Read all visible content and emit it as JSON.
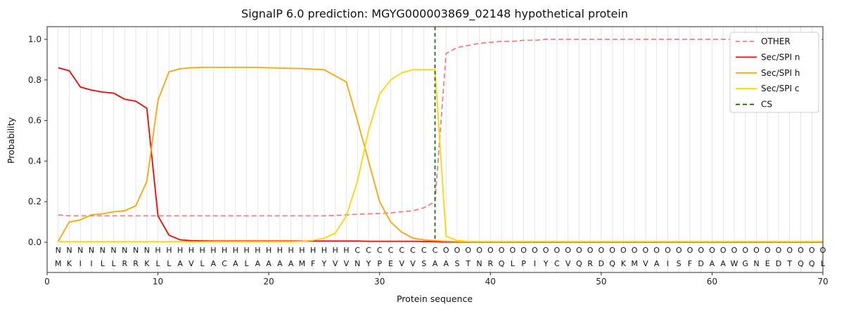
{
  "title": "SignalP 6.0 prediction: MGYG000003869_02148 hypothetical protein",
  "chart_data": {
    "type": "line",
    "xlabel": "Protein sequence",
    "ylabel": "Probability",
    "xlim": [
      0,
      70
    ],
    "yticks": [
      0.0,
      0.2,
      0.4,
      0.6,
      0.8,
      1.0
    ],
    "xticks": [
      0,
      10,
      20,
      30,
      40,
      50,
      60,
      70
    ],
    "grid": "vertical-per-residue",
    "legend_position": "upper-right",
    "cs_position": 35,
    "sequence": "MKIILLRRKLLAVLACALAAAAMFYVVNYPEVVSAASTNRQLPIYCVQRDQKMVAISFDAAWGNEDTQQL",
    "regions": "NNNNNNNNNHHHHHHHHHHHHHHHHHHCCCCCCCCOOOOOOOOOOOOOOOOOOOOOOOOOOOOOOOOOOO",
    "region_colors": {
      "N": "#ff0000",
      "H": "#ffa500",
      "C": "#ffd700",
      "O": "#a0a0a0"
    },
    "series": [
      {
        "name": "OTHER",
        "color": "#f08080",
        "dash": true,
        "values": [
          0.135,
          0.13,
          0.13,
          0.13,
          0.13,
          0.13,
          0.13,
          0.13,
          0.13,
          0.13,
          0.13,
          0.13,
          0.13,
          0.13,
          0.13,
          0.13,
          0.13,
          0.13,
          0.13,
          0.13,
          0.13,
          0.13,
          0.13,
          0.13,
          0.13,
          0.132,
          0.135,
          0.138,
          0.14,
          0.142,
          0.145,
          0.15,
          0.155,
          0.17,
          0.2,
          0.93,
          0.96,
          0.97,
          0.98,
          0.985,
          0.99,
          0.99,
          0.995,
          0.995,
          1.0,
          1.0,
          1.0,
          1.0,
          1.0,
          1.0,
          1.0,
          1.0,
          1.0,
          1.0,
          1.0,
          1.0,
          1.0,
          1.0,
          1.0,
          1.0,
          1.0,
          1.0,
          1.0,
          1.0,
          1.0,
          1.0,
          1.0,
          1.0,
          1.0,
          1.0
        ]
      },
      {
        "name": "Sec/SPI n",
        "color": "#ff0000",
        "dash": false,
        "values": [
          0.86,
          0.845,
          0.765,
          0.75,
          0.74,
          0.735,
          0.705,
          0.695,
          0.66,
          0.13,
          0.035,
          0.012,
          0.008,
          0.007,
          0.006,
          0.006,
          0.006,
          0.006,
          0.006,
          0.006,
          0.006,
          0.006,
          0.006,
          0.006,
          0.006,
          0.006,
          0.006,
          0.006,
          0.005,
          0.005,
          0.005,
          0.005,
          0.005,
          0.004,
          0.003,
          0.001,
          0.001,
          0.001,
          0.001,
          0.001,
          0.001,
          0.001,
          0.001,
          0.001,
          0.001,
          0.001,
          0.001,
          0.001,
          0.001,
          0.001,
          0.001,
          0.001,
          0.001,
          0.001,
          0.001,
          0.001,
          0.001,
          0.001,
          0.001,
          0.001,
          0.001,
          0.001,
          0.001,
          0.001,
          0.001,
          0.001,
          0.001,
          0.001,
          0.001,
          0.001
        ]
      },
      {
        "name": "Sec/SPI h",
        "color": "#ffa500",
        "dash": false,
        "values": [
          0.005,
          0.1,
          0.11,
          0.135,
          0.14,
          0.15,
          0.155,
          0.18,
          0.3,
          0.7,
          0.84,
          0.855,
          0.86,
          0.862,
          0.862,
          0.862,
          0.862,
          0.862,
          0.862,
          0.86,
          0.858,
          0.857,
          0.856,
          0.853,
          0.85,
          0.82,
          0.79,
          0.6,
          0.4,
          0.2,
          0.1,
          0.05,
          0.02,
          0.012,
          0.008,
          0.005,
          0.003,
          0.003,
          0.003,
          0.003,
          0.003,
          0.003,
          0.003,
          0.003,
          0.003,
          0.003,
          0.003,
          0.003,
          0.003,
          0.003,
          0.003,
          0.003,
          0.003,
          0.003,
          0.003,
          0.003,
          0.003,
          0.003,
          0.003,
          0.003,
          0.003,
          0.003,
          0.003,
          0.003,
          0.003,
          0.003,
          0.003,
          0.003,
          0.003,
          0.003
        ]
      },
      {
        "name": "Sec/SPI c",
        "color": "#ffd700",
        "dash": false,
        "values": [
          0.003,
          0.003,
          0.003,
          0.003,
          0.003,
          0.003,
          0.003,
          0.003,
          0.003,
          0.003,
          0.003,
          0.003,
          0.003,
          0.003,
          0.003,
          0.003,
          0.003,
          0.003,
          0.003,
          0.003,
          0.003,
          0.003,
          0.005,
          0.01,
          0.02,
          0.045,
          0.13,
          0.3,
          0.55,
          0.73,
          0.8,
          0.835,
          0.85,
          0.85,
          0.85,
          0.03,
          0.008,
          0.004,
          0.004,
          0.004,
          0.004,
          0.004,
          0.004,
          0.004,
          0.004,
          0.004,
          0.004,
          0.004,
          0.004,
          0.004,
          0.004,
          0.004,
          0.004,
          0.004,
          0.004,
          0.004,
          0.004,
          0.004,
          0.004,
          0.004,
          0.004,
          0.004,
          0.004,
          0.004,
          0.004,
          0.004,
          0.004,
          0.004,
          0.004,
          0.004
        ]
      },
      {
        "name": "CS",
        "color": "#006400",
        "dash": true,
        "type": "vline",
        "x": 35
      }
    ]
  }
}
